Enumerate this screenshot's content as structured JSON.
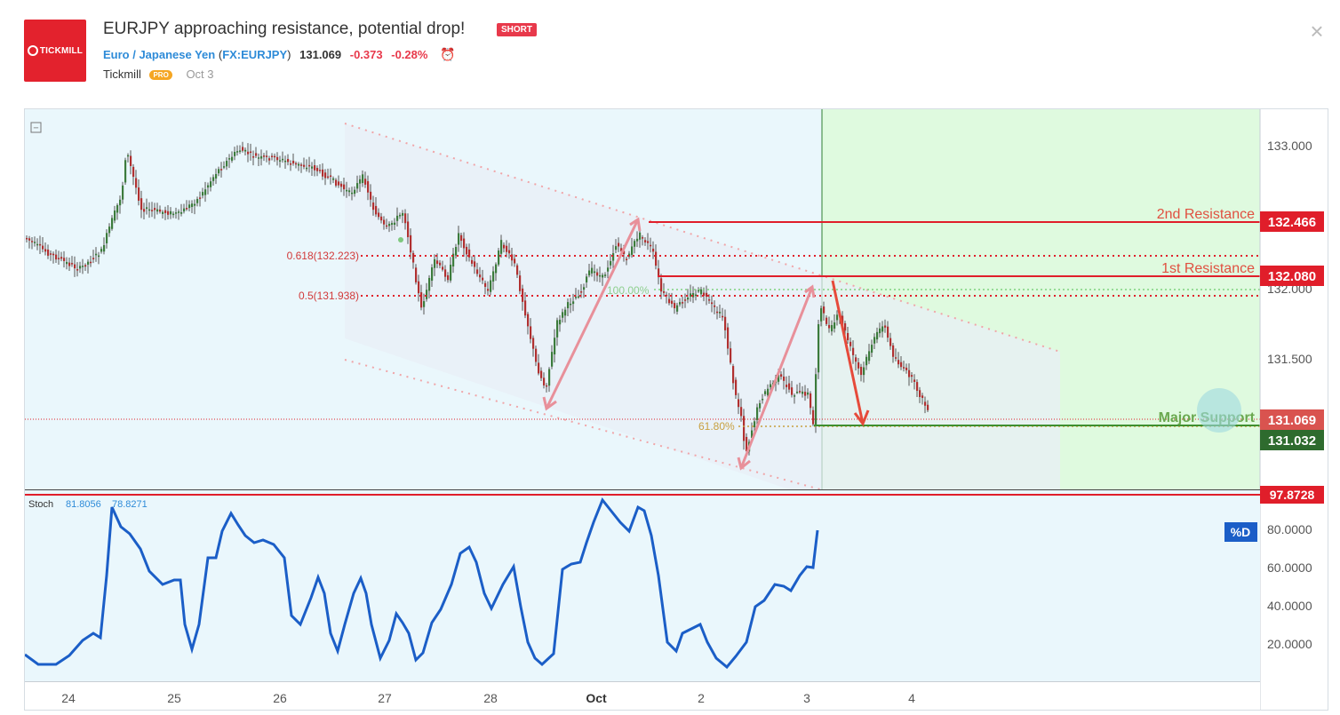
{
  "header": {
    "logo_text": "TICKMILL",
    "title": "EURJPY approaching resistance, potential drop!",
    "badge": "SHORT",
    "symbol_name": "Euro / Japanese Yen",
    "symbol_code_open": "(",
    "symbol_code": "FX:EURJPY",
    "symbol_code_close": ")",
    "price": "131.069",
    "change": "-0.373",
    "change_pct": "-0.28%",
    "author": "Tickmill",
    "pro_badge": "PRO",
    "date": "Oct 3",
    "close_label": "×",
    "alarm_icon": "alarm-clock-icon"
  },
  "chart": {
    "collapse_label": "−",
    "price_ticks": [
      "133.000",
      "132.000",
      "131.500"
    ],
    "levels": {
      "second_resistance": {
        "label": "2nd Resistance",
        "price": "132.466"
      },
      "first_resistance": {
        "label": "1st Resistance",
        "price": "132.080"
      },
      "major_support": {
        "label": "Major Support",
        "price": "131.032"
      },
      "last_price": "131.069"
    },
    "fib": {
      "f618": "0.618(132.223)",
      "f05": "0.5(131.938)",
      "f100": "100.00%",
      "f618b": "61.80%"
    },
    "x_labels": [
      "24",
      "25",
      "26",
      "27",
      "28",
      "Oct",
      "2",
      "3",
      "4"
    ],
    "colors": {
      "resistance": "#e01e2a",
      "support": "#3f8f2f",
      "support_label": "#6aa84f",
      "bull": "#3c7b3c",
      "bear": "#b03030",
      "arrow": "#e8909a",
      "stoch": "#1b5ec7",
      "zone": "#dffadf"
    }
  },
  "stoch": {
    "name": "Stoch",
    "k_value": "81.8056",
    "d_value": "78.8271",
    "tag_price": "97.8728",
    "legend_tag": "%D",
    "ticks": [
      "80.0000",
      "60.0000",
      "40.0000",
      "20.0000"
    ]
  }
}
